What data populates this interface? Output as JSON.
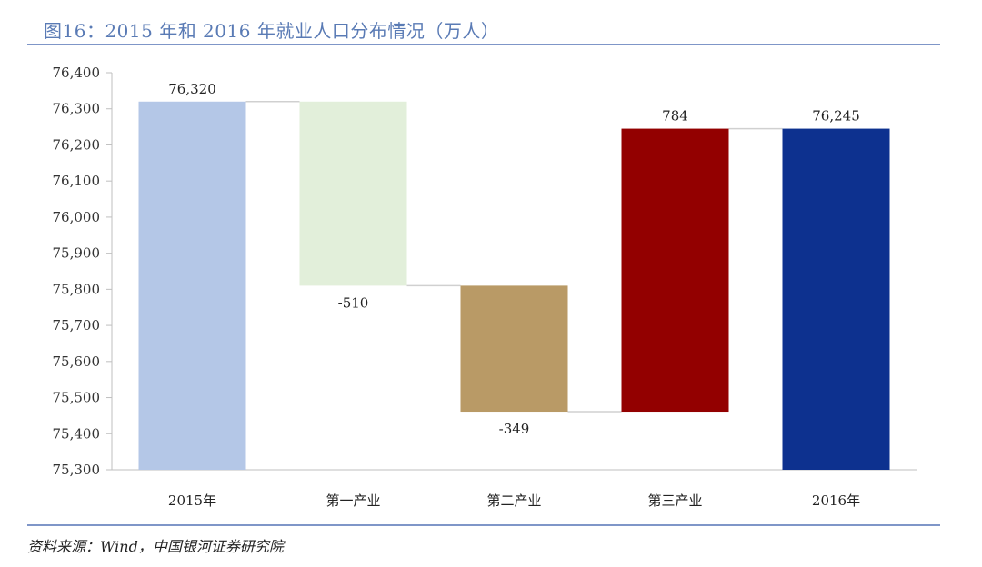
{
  "title": "图16：2015 年和 2016 年就业人口分布情况（万人）",
  "source": "资料来源：Wind，中国银河证券研究院",
  "chart_data": {
    "type": "bar",
    "subtype": "waterfall",
    "categories": [
      "2015年",
      "第一产业",
      "第二产业",
      "第三产业",
      "2016年"
    ],
    "values": [
      76320,
      -510,
      -349,
      784,
      76245
    ],
    "data_labels": [
      "76,320",
      "-510",
      "-349",
      "784",
      "76,245"
    ],
    "bar_colors": [
      "#b4c7e7",
      "#e2efda",
      "#b99a66",
      "#930000",
      "#0d318f"
    ],
    "ylim": [
      75300,
      76400
    ],
    "yticks": [
      75300,
      75400,
      75500,
      75600,
      75700,
      75800,
      75900,
      76000,
      76100,
      76200,
      76300,
      76400
    ],
    "ytick_labels": [
      "75,300",
      "75,400",
      "75,500",
      "75,600",
      "75,700",
      "75,800",
      "75,900",
      "76,000",
      "76,100",
      "76,200",
      "76,300",
      "76,400"
    ],
    "grid": false,
    "connector_lines": true
  }
}
